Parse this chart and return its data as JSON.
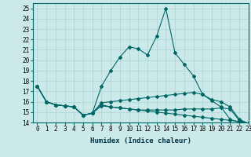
{
  "xlabel": "Humidex (Indice chaleur)",
  "bg_color": "#cce9e9",
  "grid_color": "#aad4d4",
  "line_color": "#006666",
  "xlim": [
    -0.5,
    23
  ],
  "ylim": [
    14,
    25.5
  ],
  "xticks": [
    0,
    1,
    2,
    3,
    4,
    5,
    6,
    7,
    8,
    9,
    10,
    11,
    12,
    13,
    14,
    15,
    16,
    17,
    18,
    19,
    20,
    21,
    22,
    23
  ],
  "yticks": [
    14,
    15,
    16,
    17,
    18,
    19,
    20,
    21,
    22,
    23,
    24,
    25
  ],
  "series": [
    [
      17.5,
      16.0,
      15.7,
      15.6,
      15.5,
      14.7,
      14.9,
      15.6,
      15.5,
      15.4,
      15.3,
      15.2,
      15.2,
      15.2,
      15.2,
      15.2,
      15.3,
      15.3,
      15.3,
      15.3,
      15.4,
      15.3,
      14.2,
      13.9
    ],
    [
      17.5,
      16.0,
      15.7,
      15.6,
      15.5,
      14.7,
      14.9,
      17.5,
      19.0,
      20.3,
      21.3,
      21.1,
      20.5,
      22.3,
      25.0,
      20.7,
      19.6,
      18.5,
      16.7,
      16.1,
      15.5,
      14.3,
      14.0,
      13.9
    ],
    [
      17.5,
      16.0,
      15.7,
      15.6,
      15.5,
      14.7,
      14.9,
      15.9,
      16.0,
      16.1,
      16.2,
      16.3,
      16.4,
      16.5,
      16.6,
      16.7,
      16.8,
      16.9,
      16.7,
      16.2,
      16.0,
      15.5,
      14.3,
      13.9
    ],
    [
      17.5,
      16.0,
      15.7,
      15.6,
      15.5,
      14.7,
      14.9,
      15.7,
      15.5,
      15.4,
      15.3,
      15.2,
      15.1,
      15.0,
      14.9,
      14.8,
      14.7,
      14.6,
      14.5,
      14.4,
      14.3,
      14.2,
      14.1,
      13.9
    ]
  ],
  "tick_fontsize": 5.5,
  "xlabel_fontsize": 6.5,
  "marker_size": 2.0
}
